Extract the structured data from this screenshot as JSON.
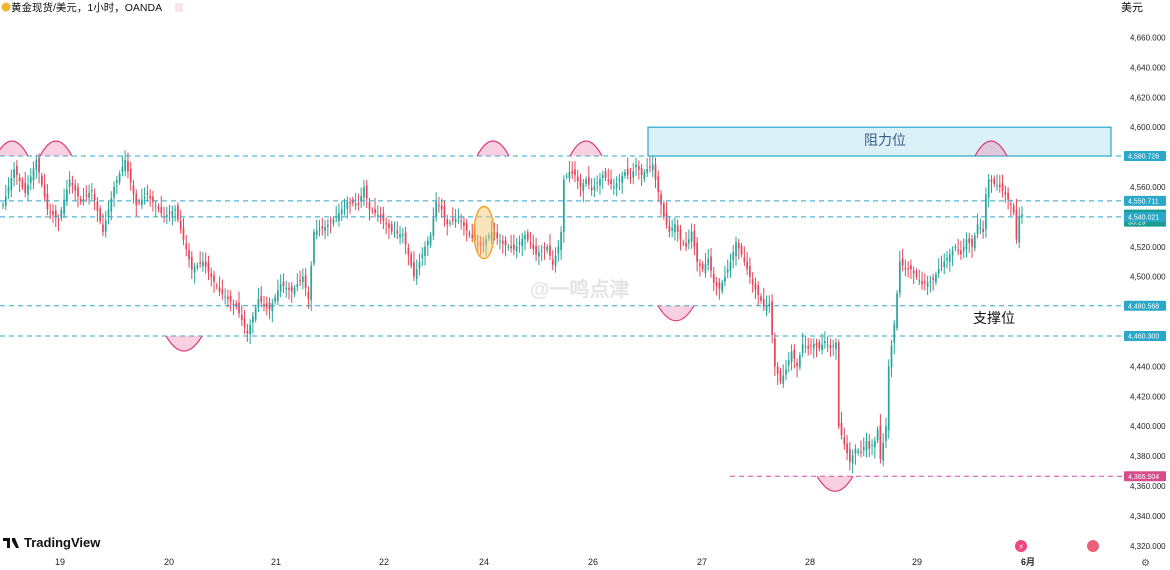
{
  "header": {
    "symbol_title": "黄金现货/美元，1小时，OANDA",
    "currency": "美元"
  },
  "brand": {
    "name": "TradingView"
  },
  "watermark": "@一鸣点津",
  "colors": {
    "up": "#26a69a",
    "down": "#e5455b",
    "level": "#2aa8c9",
    "support": "#d94b8a",
    "zone_fill": "#d9f1f7"
  },
  "icons": [
    "chart-logo-icon",
    "flag-icon",
    "lightning-icon",
    "calendar-event-icon",
    "settings-icon"
  ],
  "chart_data": {
    "type": "candlestick",
    "instrument": "黄金现货/美元",
    "timeframe": "1小时",
    "source": "OANDA",
    "ylim": [
      4310,
      4670
    ],
    "y_ticks": [
      4320,
      4340,
      4360,
      4380,
      4400,
      4420,
      4440,
      4460,
      4480,
      4500,
      4520,
      4540,
      4560,
      4580,
      4600,
      4620,
      4640,
      4660
    ],
    "x_ticks": [
      "19",
      "20",
      "21",
      "22",
      "24",
      "26",
      "27",
      "28",
      "29",
      "6月"
    ],
    "price_tags": [
      {
        "label": "4,580.726",
        "value": 4580.726,
        "style": "level"
      },
      {
        "label": "4,550.711",
        "value": 4550.711,
        "style": "level"
      },
      {
        "label": "4,541.555",
        "sub": "35:29",
        "value": 4541.555,
        "style": "current"
      },
      {
        "label": "4,540.021",
        "value": 4540.021,
        "style": "level"
      },
      {
        "label": "4,480.568",
        "value": 4480.568,
        "style": "level"
      },
      {
        "label": "4,460.300",
        "value": 4460.3,
        "style": "level"
      },
      {
        "label": "4,366.504",
        "value": 4366.504,
        "style": "support"
      }
    ],
    "resistance_zone": {
      "label": "阻力位",
      "from": 4580.726,
      "to": 4600
    },
    "support_label": "支撑位",
    "grid": false,
    "close_path": [
      [
        0,
        4548
      ],
      [
        4,
        4572
      ],
      [
        8,
        4556
      ],
      [
        12,
        4578
      ],
      [
        16,
        4545
      ],
      [
        20,
        4538
      ],
      [
        24,
        4565
      ],
      [
        28,
        4550
      ],
      [
        32,
        4558
      ],
      [
        36,
        4530
      ],
      [
        40,
        4560
      ],
      [
        44,
        4578
      ],
      [
        48,
        4548
      ],
      [
        52,
        4555
      ],
      [
        58,
        4540
      ],
      [
        62,
        4545
      ],
      [
        68,
        4505
      ],
      [
        72,
        4510
      ],
      [
        78,
        4490
      ],
      [
        84,
        4480
      ],
      [
        88,
        4462
      ],
      [
        92,
        4485
      ],
      [
        96,
        4478
      ],
      [
        100,
        4495
      ],
      [
        104,
        4490
      ],
      [
        108,
        4500
      ],
      [
        110,
        4485
      ],
      [
        112,
        4530
      ],
      [
        116,
        4533
      ],
      [
        120,
        4540
      ],
      [
        124,
        4550
      ],
      [
        128,
        4548
      ],
      [
        130,
        4560
      ],
      [
        132,
        4545
      ],
      [
        136,
        4540
      ],
      [
        140,
        4530
      ],
      [
        144,
        4528
      ],
      [
        146,
        4515
      ],
      [
        148,
        4500
      ],
      [
        150,
        4510
      ],
      [
        152,
        4520
      ],
      [
        154,
        4528
      ],
      [
        156,
        4550
      ],
      [
        158,
        4545
      ],
      [
        160,
        4535
      ],
      [
        164,
        4540
      ],
      [
        168,
        4528
      ],
      [
        172,
        4520
      ],
      [
        176,
        4530
      ],
      [
        180,
        4522
      ],
      [
        184,
        4518
      ],
      [
        188,
        4528
      ],
      [
        192,
        4515
      ],
      [
        196,
        4520
      ],
      [
        198,
        4508
      ],
      [
        200,
        4520
      ],
      [
        201,
        4530
      ],
      [
        202,
        4565
      ],
      [
        204,
        4570
      ],
      [
        206,
        4568
      ],
      [
        208,
        4560
      ],
      [
        210,
        4565
      ],
      [
        212,
        4558
      ],
      [
        216,
        4568
      ],
      [
        220,
        4560
      ],
      [
        224,
        4570
      ],
      [
        226,
        4566
      ],
      [
        228,
        4575
      ],
      [
        230,
        4568
      ],
      [
        232,
        4572
      ],
      [
        234,
        4575
      ],
      [
        235,
        4565
      ],
      [
        238,
        4540
      ],
      [
        240,
        4530
      ],
      [
        242,
        4535
      ],
      [
        244,
        4525
      ],
      [
        246,
        4520
      ],
      [
        248,
        4530
      ],
      [
        250,
        4510
      ],
      [
        252,
        4505
      ],
      [
        254,
        4512
      ],
      [
        256,
        4496
      ],
      [
        258,
        4492
      ],
      [
        260,
        4500
      ],
      [
        262,
        4510
      ],
      [
        264,
        4523
      ],
      [
        266,
        4515
      ],
      [
        268,
        4505
      ],
      [
        270,
        4495
      ],
      [
        272,
        4488
      ],
      [
        274,
        4480
      ],
      [
        276,
        4482
      ],
      [
        278,
        4440
      ],
      [
        280,
        4430
      ],
      [
        282,
        4438
      ],
      [
        284,
        4450
      ],
      [
        286,
        4440
      ],
      [
        288,
        4455
      ],
      [
        290,
        4452
      ],
      [
        292,
        4455
      ],
      [
        294,
        4452
      ],
      [
        296,
        4457
      ],
      [
        298,
        4452
      ],
      [
        300,
        4456
      ],
      [
        301,
        4400
      ],
      [
        303,
        4388
      ],
      [
        305,
        4376
      ],
      [
        307,
        4385
      ],
      [
        309,
        4382
      ],
      [
        311,
        4390
      ],
      [
        312,
        4385
      ],
      [
        314,
        4390
      ],
      [
        315,
        4398
      ],
      [
        316,
        4378
      ],
      [
        318,
        4400
      ],
      [
        319,
        4440
      ],
      [
        321,
        4468
      ],
      [
        323,
        4510
      ],
      [
        325,
        4505
      ],
      [
        327,
        4505
      ],
      [
        329,
        4500
      ],
      [
        331,
        4495
      ],
      [
        333,
        4496
      ],
      [
        335,
        4498
      ],
      [
        337,
        4505
      ],
      [
        339,
        4510
      ],
      [
        341,
        4515
      ],
      [
        343,
        4520
      ],
      [
        345,
        4515
      ],
      [
        347,
        4525
      ],
      [
        349,
        4520
      ],
      [
        351,
        4535
      ],
      [
        353,
        4530
      ],
      [
        354,
        4555
      ],
      [
        355,
        4565
      ],
      [
        357,
        4562
      ],
      [
        359,
        4560
      ],
      [
        361,
        4555
      ],
      [
        363,
        4548
      ],
      [
        364,
        4543
      ],
      [
        365,
        4525
      ],
      [
        366,
        4540
      ],
      [
        367,
        4541.555
      ]
    ]
  }
}
